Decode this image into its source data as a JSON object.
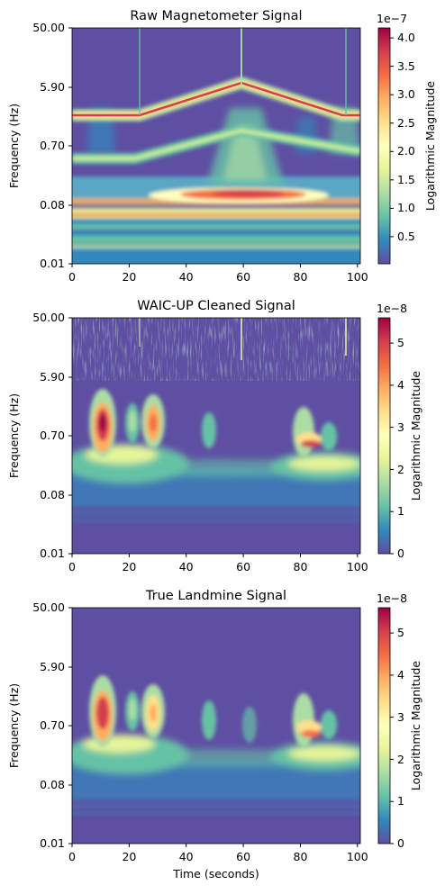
{
  "chart_data": [
    {
      "type": "heatmap",
      "title": "Raw Magnetometer Signal",
      "xlabel": "",
      "ylabel": "Frequency (Hz)",
      "xlim": [
        0,
        101
      ],
      "x_ticks": [
        "0",
        "20",
        "40",
        "60",
        "80",
        "100"
      ],
      "y_scale": "log",
      "ylim": [
        0.01,
        50.0
      ],
      "y_ticks": [
        "50.00",
        "5.90",
        "0.70",
        "0.08",
        "0.01"
      ],
      "colorbar": {
        "label": "Logarithmic Magnitude",
        "multiplier": "1e−7",
        "min": 0.0,
        "max": 4.15,
        "ticks": [
          "0.5",
          "1.0",
          "1.5",
          "2.0",
          "2.5",
          "3.0",
          "3.5",
          "4.0"
        ]
      },
      "features": [
        {
          "kind": "band",
          "freq": 2.3,
          "from": 0,
          "to": 101,
          "curve": "v-peak",
          "peak_time": 60,
          "peak_freq": 6.5,
          "value": 4.0
        },
        {
          "kind": "band",
          "freq": 0.45,
          "from": 0,
          "to": 101,
          "curve": "v-peak",
          "peak_time": 60,
          "peak_freq": 1.4,
          "value": 1.3
        },
        {
          "kind": "band",
          "freq": 0.1,
          "from": 0,
          "to": 101,
          "peak_time": 60,
          "value": 3.3
        },
        {
          "kind": "band",
          "freq": 0.055,
          "from": 0,
          "to": 101,
          "value": 2.6
        },
        {
          "kind": "spike",
          "times": [
            24,
            60,
            96
          ],
          "value": 1.2
        }
      ]
    },
    {
      "type": "heatmap",
      "title": "WAIC-UP Cleaned Signal",
      "xlabel": "",
      "ylabel": "Frequency (Hz)",
      "xlim": [
        0,
        101
      ],
      "x_ticks": [
        "0",
        "20",
        "40",
        "60",
        "80",
        "100"
      ],
      "y_scale": "log",
      "ylim": [
        0.01,
        50.0
      ],
      "y_ticks": [
        "50.00",
        "5.90",
        "0.70",
        "0.08",
        "0.01"
      ],
      "colorbar": {
        "label": "Logarithmic Magnitude",
        "multiplier": "1e−8",
        "min": 0.0,
        "max": 5.6,
        "ticks": [
          "0",
          "1",
          "2",
          "3",
          "4",
          "5"
        ]
      },
      "features": [
        {
          "kind": "blob",
          "time": 11,
          "freq": 1.0,
          "value": 5.5
        },
        {
          "kind": "blob",
          "time": 21,
          "freq": 0.9,
          "value": 1.8
        },
        {
          "kind": "blob",
          "time": 28,
          "freq": 0.9,
          "value": 3.8
        },
        {
          "kind": "blob",
          "time": 48,
          "freq": 0.6,
          "value": 1.5
        },
        {
          "kind": "blob",
          "time": 82,
          "freq": 0.45,
          "value": 4.6
        },
        {
          "kind": "noise",
          "freq_min": 8,
          "freq_max": 50,
          "value": 1.2
        }
      ]
    },
    {
      "type": "heatmap",
      "title": "True Landmine Signal",
      "xlabel": "Time (seconds)",
      "ylabel": "Frequency (Hz)",
      "xlim": [
        0,
        101
      ],
      "x_ticks": [
        "0",
        "20",
        "40",
        "60",
        "80",
        "100"
      ],
      "y_scale": "log",
      "ylim": [
        0.01,
        50.0
      ],
      "y_ticks": [
        "50.00",
        "5.90",
        "0.70",
        "0.08",
        "0.01"
      ],
      "colorbar": {
        "label": "Logarithmic Magnitude",
        "multiplier": "1e−8",
        "min": 0.0,
        "max": 5.6,
        "ticks": [
          "0",
          "1",
          "2",
          "3",
          "4",
          "5"
        ]
      },
      "features": [
        {
          "kind": "blob",
          "time": 11,
          "freq": 1.0,
          "value": 4.9
        },
        {
          "kind": "blob",
          "time": 21,
          "freq": 0.9,
          "value": 1.6
        },
        {
          "kind": "blob",
          "time": 28,
          "freq": 0.9,
          "value": 3.4
        },
        {
          "kind": "blob",
          "time": 48,
          "freq": 0.6,
          "value": 1.3
        },
        {
          "kind": "blob",
          "time": 62,
          "freq": 0.6,
          "value": 1.1
        },
        {
          "kind": "blob",
          "time": 82,
          "freq": 0.45,
          "value": 4.0
        }
      ]
    }
  ]
}
